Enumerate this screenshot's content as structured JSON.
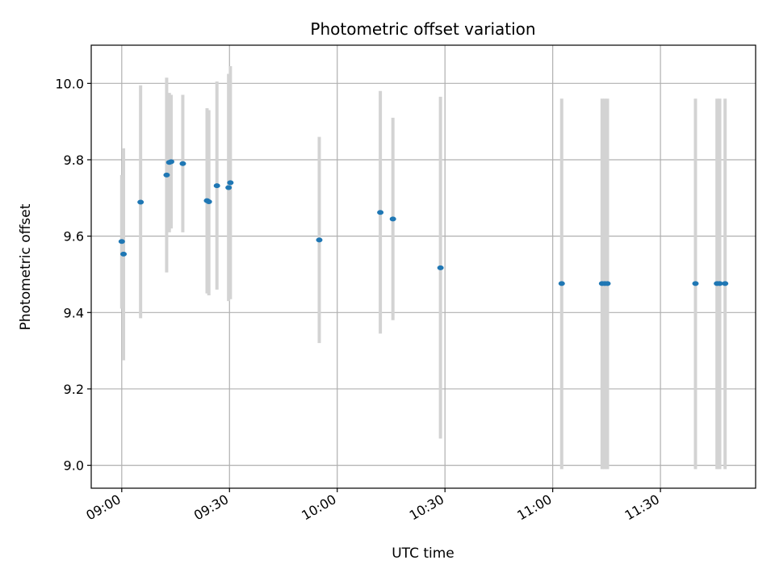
{
  "chart_data": {
    "type": "scatter",
    "title": "Photometric offset variation",
    "xlabel": "UTC time",
    "ylabel": "Photometric offset",
    "xlim": [
      "08:51:30",
      "11:56:30"
    ],
    "ylim": [
      8.94,
      10.1
    ],
    "x_ticks": [
      "09:00",
      "09:30",
      "10:00",
      "10:30",
      "11:00",
      "11:30"
    ],
    "y_ticks": [
      "9.0",
      "9.2",
      "9.4",
      "9.6",
      "9.8",
      "10.0"
    ],
    "grid": true,
    "colors": {
      "points": "#1f77b4",
      "error_bars": "#d3d3d3",
      "grid": "#b0b0b0"
    },
    "points": [
      {
        "x": "09:00:00",
        "y": 9.586,
        "ylow": 9.41,
        "yhigh": 9.76
      },
      {
        "x": "09:00:30",
        "y": 9.553,
        "ylow": 9.275,
        "yhigh": 9.83
      },
      {
        "x": "09:05:15",
        "y": 9.689,
        "ylow": 9.385,
        "yhigh": 9.995
      },
      {
        "x": "09:12:30",
        "y": 9.76,
        "ylow": 9.505,
        "yhigh": 10.015
      },
      {
        "x": "09:13:15",
        "y": 9.793,
        "ylow": 9.61,
        "yhigh": 9.975
      },
      {
        "x": "09:13:45",
        "y": 9.795,
        "ylow": 9.62,
        "yhigh": 9.97
      },
      {
        "x": "09:17:00",
        "y": 9.79,
        "ylow": 9.61,
        "yhigh": 9.97
      },
      {
        "x": "09:23:45",
        "y": 9.693,
        "ylow": 9.45,
        "yhigh": 9.935
      },
      {
        "x": "09:24:15",
        "y": 9.69,
        "ylow": 9.445,
        "yhigh": 9.93
      },
      {
        "x": "09:26:30",
        "y": 9.732,
        "ylow": 9.46,
        "yhigh": 10.005
      },
      {
        "x": "09:29:45",
        "y": 9.727,
        "ylow": 9.43,
        "yhigh": 10.025
      },
      {
        "x": "09:30:15",
        "y": 9.74,
        "ylow": 9.435,
        "yhigh": 10.045
      },
      {
        "x": "09:55:00",
        "y": 9.59,
        "ylow": 9.32,
        "yhigh": 9.86
      },
      {
        "x": "10:12:00",
        "y": 9.662,
        "ylow": 9.345,
        "yhigh": 9.98
      },
      {
        "x": "10:15:30",
        "y": 9.645,
        "ylow": 9.38,
        "yhigh": 9.91
      },
      {
        "x": "10:28:45",
        "y": 9.517,
        "ylow": 9.07,
        "yhigh": 9.965
      },
      {
        "x": "11:02:30",
        "y": 9.476,
        "ylow": 8.99,
        "yhigh": 9.96
      },
      {
        "x": "11:13:45",
        "y": 9.476,
        "ylow": 8.99,
        "yhigh": 9.96
      },
      {
        "x": "11:14:30",
        "y": 9.476,
        "ylow": 8.99,
        "yhigh": 9.96
      },
      {
        "x": "11:15:15",
        "y": 9.476,
        "ylow": 8.99,
        "yhigh": 9.96
      },
      {
        "x": "11:39:45",
        "y": 9.476,
        "ylow": 8.99,
        "yhigh": 9.96
      },
      {
        "x": "11:45:45",
        "y": 9.476,
        "ylow": 8.99,
        "yhigh": 9.96
      },
      {
        "x": "11:46:30",
        "y": 9.476,
        "ylow": 8.99,
        "yhigh": 9.96
      },
      {
        "x": "11:48:00",
        "y": 9.476,
        "ylow": 8.99,
        "yhigh": 9.96
      }
    ]
  }
}
